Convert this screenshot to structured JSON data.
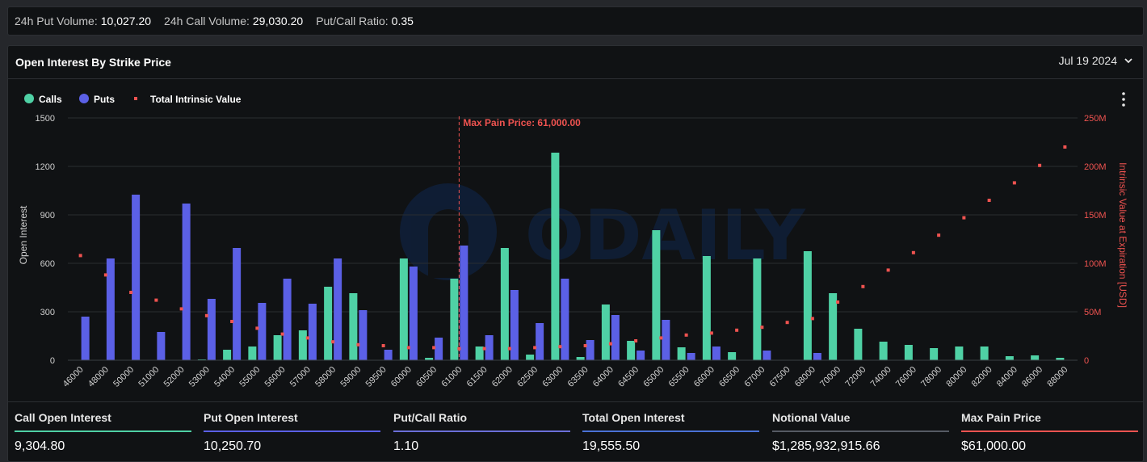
{
  "topbar": {
    "put_volume_label": "24h Put Volume:",
    "put_volume_value": "10,027.20",
    "call_volume_label": "24h Call Volume:",
    "call_volume_value": "29,030.20",
    "ratio_label": "Put/Call Ratio:",
    "ratio_value": "0.35"
  },
  "panel": {
    "title": "Open Interest By Strike Price",
    "expiry": "Jul 19 2024",
    "chevron_icon": "chevron-down-icon",
    "menu_icon": "more-vertical-icon"
  },
  "colors": {
    "calls": "#4fd1a5",
    "puts": "#5b60e6",
    "intrinsic": "#ef5350"
  },
  "watermark": "ODAILY",
  "chart_data": {
    "type": "bar",
    "legend": [
      "Calls",
      "Puts",
      "Total Intrinsic Value"
    ],
    "legend_position": "top-left",
    "ylabel": "Open Interest",
    "y2label": "Intrinsic Value at Expiration [USD]",
    "ylim": [
      0,
      1500
    ],
    "yticks": [
      0,
      300,
      600,
      900,
      1200,
      1500
    ],
    "y2lim": [
      0,
      250
    ],
    "y2ticks": [
      "0",
      "50M",
      "100M",
      "150M",
      "200M",
      "250M"
    ],
    "grid": true,
    "max_pain_label": "Max Pain Price: 61,000.00",
    "max_pain_strike": "61000",
    "categories": [
      "46000",
      "48000",
      "50000",
      "51000",
      "52000",
      "53000",
      "54000",
      "55000",
      "56000",
      "57000",
      "58000",
      "59000",
      "59500",
      "60000",
      "60500",
      "61000",
      "61500",
      "62000",
      "62500",
      "63000",
      "63500",
      "64000",
      "64500",
      "65000",
      "65500",
      "66000",
      "66500",
      "67000",
      "67500",
      "68000",
      "70000",
      "72000",
      "74000",
      "76000",
      "78000",
      "80000",
      "82000",
      "84000",
      "86000",
      "88000"
    ],
    "series": [
      {
        "name": "Calls",
        "type": "bar",
        "values": [
          0,
          0,
          0,
          0,
          0,
          5,
          65,
          85,
          155,
          185,
          455,
          415,
          0,
          630,
          15,
          505,
          85,
          695,
          35,
          1285,
          20,
          345,
          120,
          805,
          80,
          645,
          50,
          630,
          0,
          675,
          415,
          195,
          115,
          95,
          75,
          85,
          85,
          25,
          30,
          15
        ]
      },
      {
        "name": "Puts",
        "type": "bar",
        "values": [
          270,
          630,
          1025,
          175,
          970,
          380,
          695,
          355,
          505,
          350,
          630,
          310,
          65,
          580,
          140,
          710,
          155,
          435,
          230,
          505,
          125,
          280,
          60,
          250,
          45,
          85,
          0,
          60,
          0,
          45,
          0,
          0,
          0,
          0,
          0,
          0,
          0,
          0,
          0,
          0
        ]
      },
      {
        "name": "Total Intrinsic Value",
        "type": "scatter",
        "unit": "M USD",
        "values": [
          108,
          88,
          70,
          62,
          53,
          46,
          40,
          33,
          27,
          23,
          19,
          16,
          15,
          13,
          13,
          12,
          12,
          12,
          13,
          14,
          15,
          17,
          20,
          23,
          26,
          28,
          31,
          34,
          39,
          43,
          60,
          76,
          93,
          111,
          129,
          147,
          165,
          183,
          201,
          220
        ]
      }
    ]
  },
  "footer": {
    "metrics": [
      {
        "label": "Call Open Interest",
        "value": "9,304.80",
        "color": "#4fd1a5"
      },
      {
        "label": "Put Open Interest",
        "value": "10,250.70",
        "color": "#5b60e6"
      },
      {
        "label": "Put/Call Ratio",
        "value": "1.10",
        "color": "#6b6fd9"
      },
      {
        "label": "Total Open Interest",
        "value": "19,555.50",
        "color": "#4a72d6"
      },
      {
        "label": "Notional Value",
        "value": "$1,285,932,915.66",
        "color": "#555a63"
      },
      {
        "label": "Max Pain Price",
        "value": "$61,000.00",
        "color": "#ef5350"
      }
    ]
  }
}
